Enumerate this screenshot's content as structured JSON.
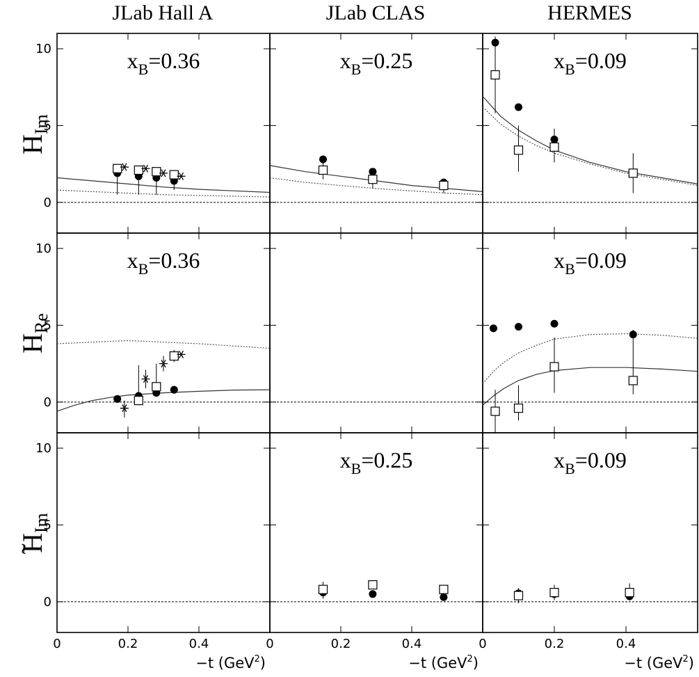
{
  "column_titles": [
    "JLab Hall A",
    "JLab CLAS",
    "HERMES"
  ],
  "row_labels": [
    {
      "main": "H",
      "sub": "Im",
      "tilde": ""
    },
    {
      "main": "H",
      "sub": "Re",
      "tilde": ""
    },
    {
      "main": "H",
      "sub": "Im",
      "tilde": "~"
    }
  ],
  "x_axis_label": {
    "prefix": "−t (GeV",
    "sup": "2",
    "suffix": ")"
  },
  "chart_data": [
    {
      "type": "scatter",
      "row": 0,
      "col": 0,
      "label_main": "x",
      "label_sub": "B",
      "label_value": "=0.36",
      "xlim": [
        0,
        0.6
      ],
      "ylim": [
        -2,
        11
      ],
      "xticks": [
        0,
        0.2,
        0.4
      ],
      "yticks": [
        0,
        5,
        10
      ],
      "series": [
        {
          "marker": "circle",
          "points": [
            {
              "x": 0.17,
              "y": 1.9,
              "lo": 0.5,
              "hi": 2.3
            },
            {
              "x": 0.23,
              "y": 1.7,
              "lo": 0.5,
              "hi": 2.2
            },
            {
              "x": 0.28,
              "y": 1.6,
              "lo": 0.5,
              "hi": 2.1
            },
            {
              "x": 0.33,
              "y": 1.4,
              "lo": 0.8,
              "hi": 2.0
            }
          ]
        },
        {
          "marker": "square",
          "points": [
            {
              "x": 0.17,
              "y": 2.2
            },
            {
              "x": 0.23,
              "y": 2.1
            },
            {
              "x": 0.28,
              "y": 2.0
            },
            {
              "x": 0.33,
              "y": 1.8
            }
          ]
        },
        {
          "marker": "star",
          "points": [
            {
              "x": 0.19,
              "y": 2.3
            },
            {
              "x": 0.25,
              "y": 2.2
            },
            {
              "x": 0.3,
              "y": 1.9
            },
            {
              "x": 0.35,
              "y": 1.7
            }
          ]
        }
      ],
      "curves": [
        {
          "style": "solid",
          "points": [
            [
              0,
              1.6
            ],
            [
              0.1,
              1.4
            ],
            [
              0.2,
              1.2
            ],
            [
              0.3,
              1.0
            ],
            [
              0.4,
              0.85
            ],
            [
              0.5,
              0.75
            ],
            [
              0.6,
              0.65
            ]
          ]
        },
        {
          "style": "dotted",
          "points": [
            [
              0,
              0.8
            ],
            [
              0.1,
              0.7
            ],
            [
              0.2,
              0.6
            ],
            [
              0.3,
              0.5
            ],
            [
              0.4,
              0.45
            ],
            [
              0.5,
              0.4
            ],
            [
              0.6,
              0.35
            ]
          ]
        }
      ]
    },
    {
      "type": "scatter",
      "row": 0,
      "col": 1,
      "label_main": "x",
      "label_sub": "B",
      "label_value": "=0.25",
      "xlim": [
        0,
        0.6
      ],
      "ylim": [
        -2,
        11
      ],
      "xticks": [
        0,
        0.2,
        0.4
      ],
      "yticks": [
        0,
        5,
        10
      ],
      "series": [
        {
          "marker": "circle",
          "points": [
            {
              "x": 0.15,
              "y": 2.8
            },
            {
              "x": 0.29,
              "y": 2.0
            },
            {
              "x": 0.49,
              "y": 1.3
            }
          ]
        },
        {
          "marker": "square",
          "points": [
            {
              "x": 0.15,
              "y": 2.1,
              "lo": 1.5,
              "hi": 2.7
            },
            {
              "x": 0.29,
              "y": 1.5,
              "lo": 0.9,
              "hi": 2.1
            },
            {
              "x": 0.49,
              "y": 1.1,
              "lo": 0.6,
              "hi": 1.5
            }
          ]
        }
      ],
      "curves": [
        {
          "style": "solid",
          "points": [
            [
              0,
              2.4
            ],
            [
              0.1,
              2.0
            ],
            [
              0.2,
              1.7
            ],
            [
              0.3,
              1.4
            ],
            [
              0.4,
              1.1
            ],
            [
              0.5,
              0.9
            ],
            [
              0.6,
              0.7
            ]
          ]
        },
        {
          "style": "dotted",
          "points": [
            [
              0,
              1.6
            ],
            [
              0.1,
              1.3
            ],
            [
              0.2,
              1.1
            ],
            [
              0.3,
              0.9
            ],
            [
              0.4,
              0.75
            ],
            [
              0.5,
              0.6
            ],
            [
              0.6,
              0.5
            ]
          ]
        }
      ]
    },
    {
      "type": "scatter",
      "row": 0,
      "col": 2,
      "label_main": "x",
      "label_sub": "B",
      "label_value": "=0.09",
      "xlim": [
        0,
        0.6
      ],
      "ylim": [
        -2,
        11
      ],
      "xticks": [
        0,
        0.2,
        0.4
      ],
      "yticks": [
        0,
        5,
        10
      ],
      "series": [
        {
          "marker": "circle",
          "points": [
            {
              "x": 0.035,
              "y": 10.4
            },
            {
              "x": 0.1,
              "y": 6.2
            },
            {
              "x": 0.2,
              "y": 4.1
            },
            {
              "x": 0.42,
              "y": 1.9
            }
          ]
        },
        {
          "marker": "square",
          "points": [
            {
              "x": 0.035,
              "y": 8.3,
              "lo": 5.8,
              "hi": 10.8
            },
            {
              "x": 0.1,
              "y": 3.4,
              "lo": 2.0,
              "hi": 5.0
            },
            {
              "x": 0.2,
              "y": 3.6,
              "lo": 2.6,
              "hi": 4.8
            },
            {
              "x": 0.42,
              "y": 1.9,
              "lo": 0.6,
              "hi": 3.2
            }
          ]
        }
      ],
      "curves": [
        {
          "style": "solid",
          "points": [
            [
              0,
              6.9
            ],
            [
              0.05,
              5.6
            ],
            [
              0.1,
              4.7
            ],
            [
              0.15,
              4.0
            ],
            [
              0.2,
              3.4
            ],
            [
              0.3,
              2.6
            ],
            [
              0.4,
              2.0
            ],
            [
              0.5,
              1.6
            ],
            [
              0.6,
              1.2
            ]
          ]
        },
        {
          "style": "dotted",
          "points": [
            [
              0,
              6.2
            ],
            [
              0.05,
              5.1
            ],
            [
              0.1,
              4.3
            ],
            [
              0.15,
              3.7
            ],
            [
              0.2,
              3.2
            ],
            [
              0.3,
              2.5
            ],
            [
              0.4,
              1.9
            ],
            [
              0.5,
              1.5
            ],
            [
              0.6,
              1.1
            ]
          ]
        }
      ]
    },
    {
      "type": "scatter",
      "row": 1,
      "col": 0,
      "label_main": "x",
      "label_sub": "B",
      "label_value": "=0.36",
      "xlim": [
        0,
        0.6
      ],
      "ylim": [
        -2,
        11
      ],
      "xticks": [
        0,
        0.2,
        0.4
      ],
      "yticks": [
        0,
        5,
        10
      ],
      "series": [
        {
          "marker": "circle",
          "points": [
            {
              "x": 0.17,
              "y": 0.2
            },
            {
              "x": 0.23,
              "y": 0.4
            },
            {
              "x": 0.28,
              "y": 0.6
            },
            {
              "x": 0.33,
              "y": 0.8
            }
          ]
        },
        {
          "marker": "square",
          "points": [
            {
              "x": 0.23,
              "y": 0.1,
              "lo": -0.2,
              "hi": 2.4
            },
            {
              "x": 0.28,
              "y": 1.0,
              "lo": 0.5,
              "hi": 2.5
            },
            {
              "x": 0.33,
              "y": 3.0,
              "lo": 2.6,
              "hi": 3.4
            }
          ]
        },
        {
          "marker": "star",
          "points": [
            {
              "x": 0.19,
              "y": -0.4,
              "lo": -1.0,
              "hi": 0.1
            },
            {
              "x": 0.25,
              "y": 1.5,
              "lo": 0.9,
              "hi": 2.1
            },
            {
              "x": 0.3,
              "y": 2.5,
              "lo": 2.0,
              "hi": 3.0
            },
            {
              "x": 0.35,
              "y": 3.1
            }
          ]
        }
      ],
      "curves": [
        {
          "style": "solid",
          "points": [
            [
              0,
              -0.6
            ],
            [
              0.05,
              -0.2
            ],
            [
              0.1,
              0.1
            ],
            [
              0.15,
              0.3
            ],
            [
              0.2,
              0.45
            ],
            [
              0.3,
              0.6
            ],
            [
              0.4,
              0.7
            ],
            [
              0.5,
              0.78
            ],
            [
              0.6,
              0.8
            ]
          ]
        },
        {
          "style": "dotted",
          "points": [
            [
              0,
              3.8
            ],
            [
              0.1,
              3.9
            ],
            [
              0.2,
              4.0
            ],
            [
              0.3,
              3.9
            ],
            [
              0.4,
              3.8
            ],
            [
              0.5,
              3.65
            ],
            [
              0.6,
              3.5
            ]
          ]
        }
      ]
    },
    {
      "type": "scatter",
      "row": 1,
      "col": 1,
      "label_main": "",
      "label_sub": "",
      "label_value": "",
      "xlim": [
        0,
        0.6
      ],
      "ylim": [
        -2,
        11
      ],
      "xticks": [
        0,
        0.2,
        0.4
      ],
      "yticks": [
        0,
        5,
        10
      ],
      "series": [],
      "curves": []
    },
    {
      "type": "scatter",
      "row": 1,
      "col": 2,
      "label_main": "x",
      "label_sub": "B",
      "label_value": "=0.09",
      "xlim": [
        0,
        0.6
      ],
      "ylim": [
        -2,
        11
      ],
      "xticks": [
        0,
        0.2,
        0.4
      ],
      "yticks": [
        0,
        5,
        10
      ],
      "series": [
        {
          "marker": "circle",
          "points": [
            {
              "x": 0.03,
              "y": 4.8
            },
            {
              "x": 0.1,
              "y": 4.9
            },
            {
              "x": 0.2,
              "y": 5.1
            },
            {
              "x": 0.42,
              "y": 4.4
            }
          ]
        },
        {
          "marker": "square",
          "points": [
            {
              "x": 0.035,
              "y": -0.6,
              "lo": -2.0,
              "hi": 0.8
            },
            {
              "x": 0.1,
              "y": -0.4,
              "lo": -1.2,
              "hi": 1.1
            },
            {
              "x": 0.2,
              "y": 2.3,
              "lo": 0.6,
              "hi": 4.2
            },
            {
              "x": 0.42,
              "y": 1.4,
              "lo": 0.5,
              "hi": 4.7
            }
          ]
        }
      ],
      "curves": [
        {
          "style": "solid",
          "points": [
            [
              0,
              -0.2
            ],
            [
              0.03,
              0.4
            ],
            [
              0.06,
              0.9
            ],
            [
              0.1,
              1.4
            ],
            [
              0.15,
              1.8
            ],
            [
              0.2,
              2.05
            ],
            [
              0.3,
              2.25
            ],
            [
              0.4,
              2.25
            ],
            [
              0.5,
              2.15
            ],
            [
              0.6,
              2.0
            ]
          ]
        },
        {
          "style": "dotted",
          "points": [
            [
              0,
              1.2
            ],
            [
              0.03,
              2.0
            ],
            [
              0.06,
              2.6
            ],
            [
              0.1,
              3.2
            ],
            [
              0.15,
              3.7
            ],
            [
              0.2,
              4.1
            ],
            [
              0.3,
              4.4
            ],
            [
              0.4,
              4.45
            ],
            [
              0.5,
              4.35
            ],
            [
              0.6,
              4.15
            ]
          ]
        }
      ]
    },
    {
      "type": "scatter",
      "row": 2,
      "col": 0,
      "label_main": "",
      "label_sub": "",
      "label_value": "",
      "xlim": [
        0,
        0.6
      ],
      "ylim": [
        -2,
        11
      ],
      "xticks": [
        0,
        0.2,
        0.4
      ],
      "yticks": [
        0,
        5,
        10
      ],
      "series": [],
      "curves": []
    },
    {
      "type": "scatter",
      "row": 2,
      "col": 1,
      "label_main": "x",
      "label_sub": "B",
      "label_value": "=0.25",
      "xlim": [
        0,
        0.6
      ],
      "ylim": [
        -2,
        11
      ],
      "xticks": [
        0,
        0.2,
        0.4
      ],
      "yticks": [
        0,
        5,
        10
      ],
      "series": [
        {
          "marker": "circle",
          "points": [
            {
              "x": 0.15,
              "y": 0.6,
              "lo": 0.2,
              "hi": 1.1
            },
            {
              "x": 0.29,
              "y": 0.5
            },
            {
              "x": 0.49,
              "y": 0.3
            }
          ]
        },
        {
          "marker": "square",
          "points": [
            {
              "x": 0.15,
              "y": 0.8,
              "lo": 0.3,
              "hi": 1.3
            },
            {
              "x": 0.29,
              "y": 1.1
            },
            {
              "x": 0.49,
              "y": 0.8
            }
          ]
        }
      ],
      "curves": []
    },
    {
      "type": "scatter",
      "row": 2,
      "col": 2,
      "label_main": "x",
      "label_sub": "B",
      "label_value": "=0.09",
      "xlim": [
        0,
        0.6
      ],
      "ylim": [
        -2,
        11
      ],
      "xticks": [
        0,
        0.2,
        0.4
      ],
      "yticks": [
        0,
        5,
        10
      ],
      "series": [
        {
          "marker": "circle",
          "points": [
            {
              "x": 0.1,
              "y": 0.55
            },
            {
              "x": 0.2,
              "y": 0.5
            },
            {
              "x": 0.41,
              "y": 0.35
            }
          ]
        },
        {
          "marker": "square",
          "points": [
            {
              "x": 0.1,
              "y": 0.4,
              "lo": -0.1,
              "hi": 0.9
            },
            {
              "x": 0.2,
              "y": 0.6,
              "lo": 0.1,
              "hi": 1.1
            },
            {
              "x": 0.41,
              "y": 0.6,
              "lo": 0.1,
              "hi": 1.2
            }
          ]
        }
      ],
      "curves": []
    }
  ]
}
